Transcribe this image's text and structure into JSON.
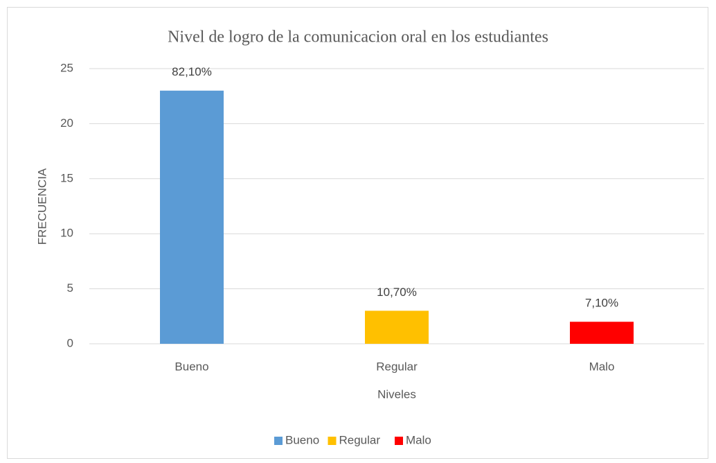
{
  "chart_data": {
    "type": "bar",
    "title": "Nivel de logro de la comunicacion oral en los estudiantes",
    "categories": [
      "Bueno",
      "Regular",
      "Malo"
    ],
    "values": [
      23,
      3,
      2
    ],
    "colors": [
      "#5b9bd5",
      "#ffc000",
      "#ff0000"
    ],
    "annotations": [
      "82,10%",
      "10,70%",
      "7,10%"
    ],
    "y_label": "FRECUENCIA",
    "x_label": "Niveles",
    "ylim": [
      0,
      25
    ],
    "yticks": [
      0,
      5,
      10,
      15,
      20,
      25
    ],
    "grid": true,
    "legend": "bottom"
  }
}
